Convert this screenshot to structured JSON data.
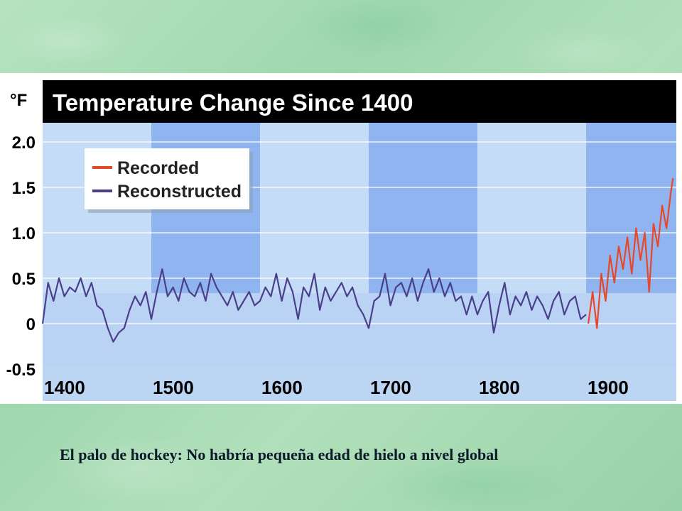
{
  "slide": {
    "caption": "El palo de hockey: No habría pequeña edad de hielo a nivel global"
  },
  "colors": {
    "recorded": "#e8482a",
    "reconstructed": "#4a3f8a",
    "title_bar": "#000000",
    "band_light": "#cfe3f8",
    "band_dark": "#8fb4ef"
  },
  "chart_data": {
    "type": "line",
    "title": "Temperature Change Since 1400",
    "unit_label": "°F",
    "ylim": [
      -0.5,
      2.0
    ],
    "y_ticks": [
      "2.0",
      "1.5",
      "1.0",
      "0.5",
      "0",
      "-0.5"
    ],
    "xlim": [
      1400,
      1980
    ],
    "x_ticks": [
      "1400",
      "1500",
      "1600",
      "1700",
      "1800",
      "1900"
    ],
    "grid": true,
    "legend_position": "top-left",
    "series": [
      {
        "name": "Recorded",
        "x": [
          1902,
          1906,
          1910,
          1914,
          1918,
          1922,
          1926,
          1930,
          1934,
          1938,
          1942,
          1946,
          1950,
          1954,
          1958,
          1962,
          1966,
          1970,
          1974,
          1978,
          1980
        ],
        "values": [
          0.0,
          0.35,
          -0.05,
          0.55,
          0.25,
          0.75,
          0.45,
          0.85,
          0.6,
          0.95,
          0.55,
          1.05,
          0.7,
          1.0,
          0.35,
          1.1,
          0.85,
          1.3,
          1.05,
          1.45,
          1.6
        ]
      },
      {
        "name": "Reconstructed",
        "x": [
          1400,
          1405,
          1410,
          1415,
          1420,
          1425,
          1430,
          1435,
          1440,
          1445,
          1450,
          1455,
          1460,
          1465,
          1470,
          1475,
          1480,
          1485,
          1490,
          1495,
          1500,
          1505,
          1510,
          1515,
          1520,
          1525,
          1530,
          1535,
          1540,
          1545,
          1550,
          1555,
          1560,
          1565,
          1570,
          1575,
          1580,
          1585,
          1590,
          1595,
          1600,
          1605,
          1610,
          1615,
          1620,
          1625,
          1630,
          1635,
          1640,
          1645,
          1650,
          1655,
          1660,
          1665,
          1670,
          1675,
          1680,
          1685,
          1690,
          1695,
          1700,
          1705,
          1710,
          1715,
          1720,
          1725,
          1730,
          1735,
          1740,
          1745,
          1750,
          1755,
          1760,
          1765,
          1770,
          1775,
          1780,
          1785,
          1790,
          1795,
          1800,
          1805,
          1810,
          1815,
          1820,
          1825,
          1830,
          1835,
          1840,
          1845,
          1850,
          1855,
          1860,
          1865,
          1870,
          1875,
          1880,
          1885,
          1890,
          1895,
          1900
        ],
        "values": [
          0.0,
          0.45,
          0.25,
          0.5,
          0.3,
          0.4,
          0.35,
          0.5,
          0.3,
          0.45,
          0.2,
          0.15,
          -0.05,
          -0.2,
          -0.1,
          -0.05,
          0.15,
          0.3,
          0.2,
          0.35,
          0.05,
          0.35,
          0.6,
          0.3,
          0.4,
          0.25,
          0.5,
          0.35,
          0.3,
          0.45,
          0.25,
          0.55,
          0.4,
          0.3,
          0.2,
          0.35,
          0.15,
          0.25,
          0.35,
          0.2,
          0.25,
          0.4,
          0.3,
          0.55,
          0.25,
          0.5,
          0.35,
          0.05,
          0.4,
          0.3,
          0.55,
          0.15,
          0.4,
          0.25,
          0.35,
          0.45,
          0.3,
          0.4,
          0.2,
          0.1,
          -0.05,
          0.25,
          0.3,
          0.55,
          0.2,
          0.4,
          0.45,
          0.3,
          0.5,
          0.25,
          0.45,
          0.6,
          0.35,
          0.5,
          0.3,
          0.45,
          0.25,
          0.3,
          0.1,
          0.3,
          0.1,
          0.25,
          0.35,
          -0.1,
          0.2,
          0.45,
          0.1,
          0.3,
          0.2,
          0.35,
          0.15,
          0.3,
          0.2,
          0.05,
          0.25,
          0.35,
          0.1,
          0.25,
          0.3,
          0.05,
          0.1
        ]
      }
    ]
  }
}
